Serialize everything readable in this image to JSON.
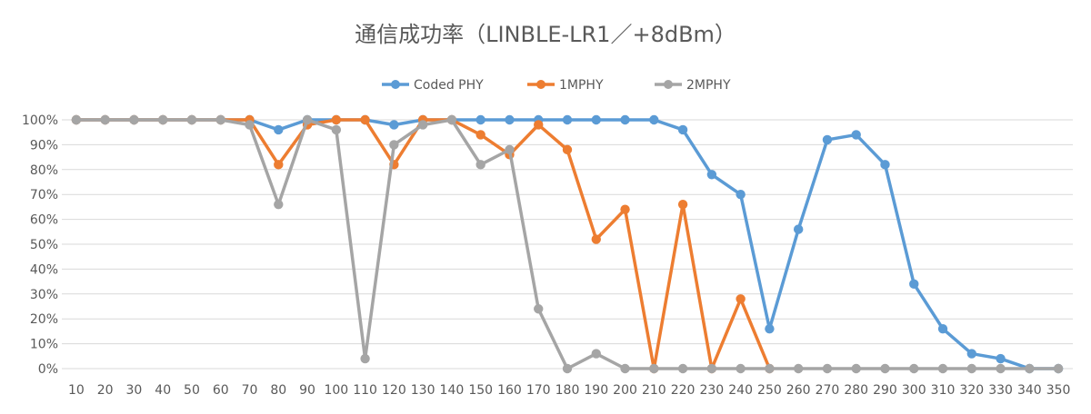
{
  "chart_data": {
    "type": "line",
    "title": "通信成功率（LINBLE-LR1／+8dBm）",
    "xlabel": "",
    "ylabel": "",
    "ylim": [
      0,
      100
    ],
    "y_ticks": [
      "0%",
      "10%",
      "20%",
      "30%",
      "40%",
      "50%",
      "60%",
      "70%",
      "80%",
      "90%",
      "100%"
    ],
    "grid": true,
    "legend_position": "top",
    "x": [
      10,
      20,
      30,
      40,
      50,
      60,
      70,
      80,
      90,
      100,
      110,
      120,
      130,
      140,
      150,
      160,
      170,
      180,
      190,
      200,
      210,
      220,
      230,
      240,
      250,
      260,
      270,
      280,
      290,
      300,
      310,
      320,
      330,
      340,
      350
    ],
    "series": [
      {
        "name": "Coded PHY",
        "color": "#5b9bd5",
        "values": [
          100,
          100,
          100,
          100,
          100,
          100,
          100,
          96,
          100,
          100,
          100,
          98,
          100,
          100,
          100,
          100,
          100,
          100,
          100,
          100,
          100,
          96,
          78,
          70,
          16,
          56,
          92,
          94,
          82,
          34,
          16,
          6,
          4,
          0,
          0
        ]
      },
      {
        "name": "1MPHY",
        "color": "#ed7d31",
        "values": [
          100,
          100,
          100,
          100,
          100,
          100,
          100,
          82,
          98,
          100,
          100,
          82,
          100,
          100,
          94,
          86,
          98,
          88,
          52,
          64,
          0,
          66,
          0,
          28,
          0,
          null,
          null,
          null,
          null,
          null,
          null,
          null,
          null,
          null,
          null
        ]
      },
      {
        "name": "2MPHY",
        "color": "#a5a5a5",
        "values": [
          100,
          100,
          100,
          100,
          100,
          100,
          98,
          66,
          100,
          96,
          4,
          90,
          98,
          100,
          82,
          88,
          24,
          0,
          6,
          0,
          0,
          0,
          0,
          0,
          0,
          0,
          0,
          0,
          0,
          0,
          0,
          0,
          0,
          0,
          0
        ]
      }
    ]
  }
}
